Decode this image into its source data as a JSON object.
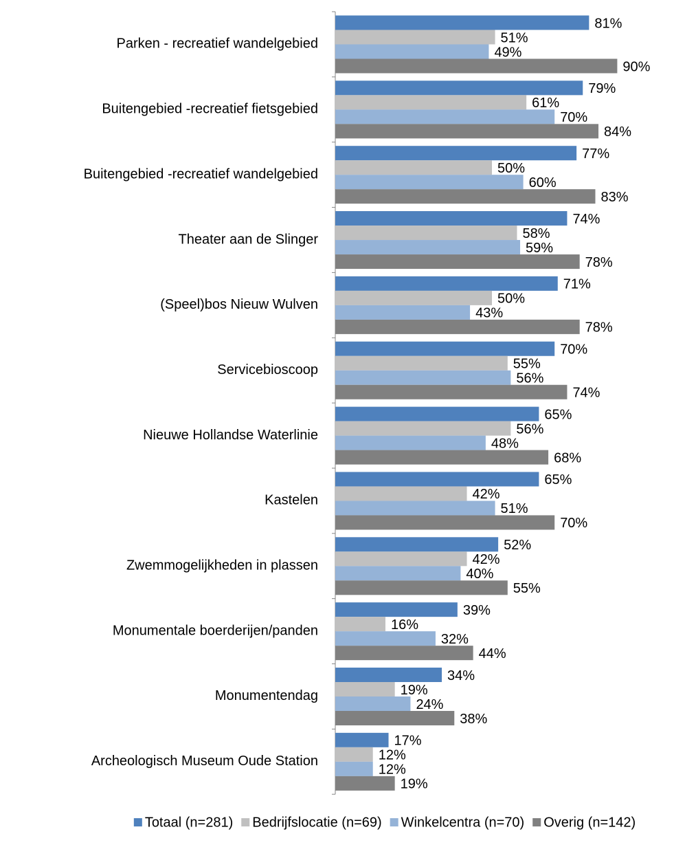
{
  "chart_data": {
    "type": "bar",
    "orientation": "horizontal",
    "categories": [
      "Parken - recreatief wandelgebied",
      "Buitengebied -recreatief fietsgebied",
      "Buitengebied -recreatief wandelgebied",
      "Theater aan de Slinger",
      "(Speel)bos Nieuw Wulven",
      "Servicebioscoop",
      "Nieuwe Hollandse Waterlinie",
      "Kastelen",
      "Zwemmogelijkheden in plassen",
      "Monumentale boerderijen/panden",
      "Monumentendag",
      "Archeologisch Museum Oude Station"
    ],
    "series": [
      {
        "name": "Totaal (n=281)",
        "color": "#4f81bd",
        "values": [
          81,
          79,
          77,
          74,
          71,
          70,
          65,
          65,
          52,
          39,
          34,
          17
        ],
        "value_labels": [
          "81%",
          "79%",
          "77%",
          "74%",
          "71%",
          "70%",
          "65%",
          "65%",
          "52%",
          "39%",
          "34%",
          "17%"
        ]
      },
      {
        "name": "Bedrijfslocatie (n=69)",
        "color": "#c0c0c0",
        "values": [
          51,
          61,
          50,
          58,
          50,
          55,
          56,
          42,
          42,
          16,
          19,
          12
        ],
        "value_labels": [
          "51%",
          "61%",
          "50%",
          "58%",
          "50%",
          "55%",
          "56%",
          "42%",
          "42%",
          "16%",
          "19%",
          "12%"
        ]
      },
      {
        "name": "Winkelcentra (n=70)",
        "color": "#95b3d7",
        "values": [
          49,
          70,
          60,
          59,
          43,
          56,
          48,
          51,
          40,
          32,
          24,
          12
        ],
        "value_labels": [
          "49%",
          "70%",
          "60%",
          "59%",
          "43%",
          "56%",
          "48%",
          "51%",
          "40%",
          "32%",
          "24%",
          "12%"
        ]
      },
      {
        "name": "Overig (n=142)",
        "color": "#808080",
        "values": [
          90,
          84,
          83,
          78,
          78,
          74,
          68,
          70,
          55,
          44,
          38,
          19
        ],
        "value_labels": [
          "90%",
          "84%",
          "83%",
          "78%",
          "78%",
          "74%",
          "68%",
          "70%",
          "55%",
          "44%",
          "38%",
          "19%"
        ]
      }
    ],
    "legend": "bottom"
  }
}
